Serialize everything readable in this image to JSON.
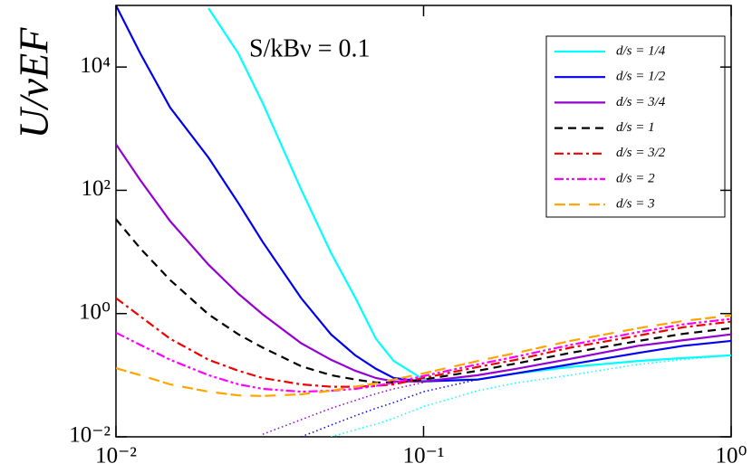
{
  "chart_data": {
    "type": "line",
    "ylabel": "U/νEF",
    "annotation": "S/kBν = 0.1",
    "xscale": "log",
    "yscale": "log",
    "xlim": [
      0.01,
      1
    ],
    "ylim": [
      0.01,
      100000
    ],
    "xticks": [
      {
        "value": 0.01,
        "label": "10⁻²"
      },
      {
        "value": 0.1,
        "label": "10⁻¹"
      },
      {
        "value": 1,
        "label": "10⁰"
      }
    ],
    "yticks": [
      {
        "value": 0.01,
        "label": "10⁻²"
      },
      {
        "value": 1,
        "label": "10⁰"
      },
      {
        "value": 100,
        "label": "10²"
      },
      {
        "value": 10000,
        "label": "10⁴"
      }
    ],
    "legend": "upper right",
    "x": [
      0.01,
      0.012,
      0.015,
      0.02,
      0.025,
      0.03,
      0.04,
      0.05,
      0.06,
      0.07,
      0.08,
      0.1,
      0.15,
      0.2,
      0.3,
      0.5,
      0.7,
      1.0
    ],
    "series": [
      {
        "name": "d/s = 1/4",
        "color": "#00ffff",
        "dash": "none",
        "values": [
          null,
          null,
          null,
          90000,
          16600,
          2600,
          103,
          9.7,
          1.8,
          0.39,
          0.17,
          0.085,
          0.085,
          0.107,
          0.136,
          0.17,
          0.19,
          0.21
        ],
        "lower_values": [
          null,
          null,
          null,
          null,
          null,
          null,
          null,
          0.01,
          0.013,
          0.016,
          0.02,
          0.031,
          0.056,
          0.075,
          0.1,
          0.15,
          0.18,
          0.21
        ]
      },
      {
        "name": "d/s = 1/2",
        "color": "#0000ee",
        "dash": "none",
        "values": [
          100000,
          16600,
          2200,
          338,
          62,
          14.5,
          1.78,
          0.46,
          0.21,
          0.127,
          0.09,
          0.079,
          0.085,
          0.107,
          0.15,
          0.23,
          0.3,
          0.36
        ],
        "lower_values": [
          null,
          null,
          null,
          null,
          null,
          null,
          0.01,
          0.0155,
          0.022,
          0.029,
          0.036,
          0.054,
          0.085,
          null,
          null,
          null,
          null,
          null
        ]
      },
      {
        "name": "d/s = 3/4",
        "color": "#9400d3",
        "dash": "none",
        "values": [
          560,
          146,
          31.6,
          6.2,
          2.1,
          0.97,
          0.33,
          0.178,
          0.118,
          0.09,
          0.079,
          0.079,
          0.1,
          0.127,
          0.184,
          0.3,
          0.37,
          0.46
        ],
        "lower_values": [
          null,
          null,
          null,
          null,
          null,
          0.011,
          0.019,
          0.029,
          0.039,
          0.05,
          0.06,
          0.076,
          null,
          null,
          null,
          null,
          null,
          null
        ]
      },
      {
        "name": "d/s = 1",
        "color": "#000000",
        "dash": "9,6",
        "values": [
          34,
          11.4,
          3.5,
          0.97,
          0.46,
          0.28,
          0.14,
          0.1,
          0.085,
          0.076,
          0.076,
          0.085,
          0.118,
          0.155,
          0.23,
          0.36,
          0.47,
          0.58
        ]
      },
      {
        "name": "d/s = 3/2",
        "color": "#ee0000",
        "dash": "10,4,3,4",
        "values": [
          1.78,
          0.9,
          0.39,
          0.178,
          0.118,
          0.09,
          0.071,
          0.065,
          0.065,
          0.067,
          0.071,
          0.09,
          0.136,
          0.178,
          0.28,
          0.44,
          0.6,
          0.74
        ]
      },
      {
        "name": "d/s = 2",
        "color": "#ff00ff",
        "dash": "10,3,3,3,3,3",
        "values": [
          0.49,
          0.31,
          0.178,
          0.1,
          0.071,
          0.06,
          0.054,
          0.056,
          0.06,
          0.067,
          0.076,
          0.097,
          0.15,
          0.2,
          0.31,
          0.5,
          0.67,
          0.82
        ]
      },
      {
        "name": "d/s = 3",
        "color": "#ffa500",
        "dash": "12,4,12,10",
        "values": [
          0.13,
          0.1,
          0.071,
          0.054,
          0.047,
          0.046,
          0.049,
          0.056,
          0.065,
          0.074,
          0.085,
          0.107,
          0.17,
          0.23,
          0.36,
          0.58,
          0.76,
          0.93
        ]
      }
    ]
  }
}
